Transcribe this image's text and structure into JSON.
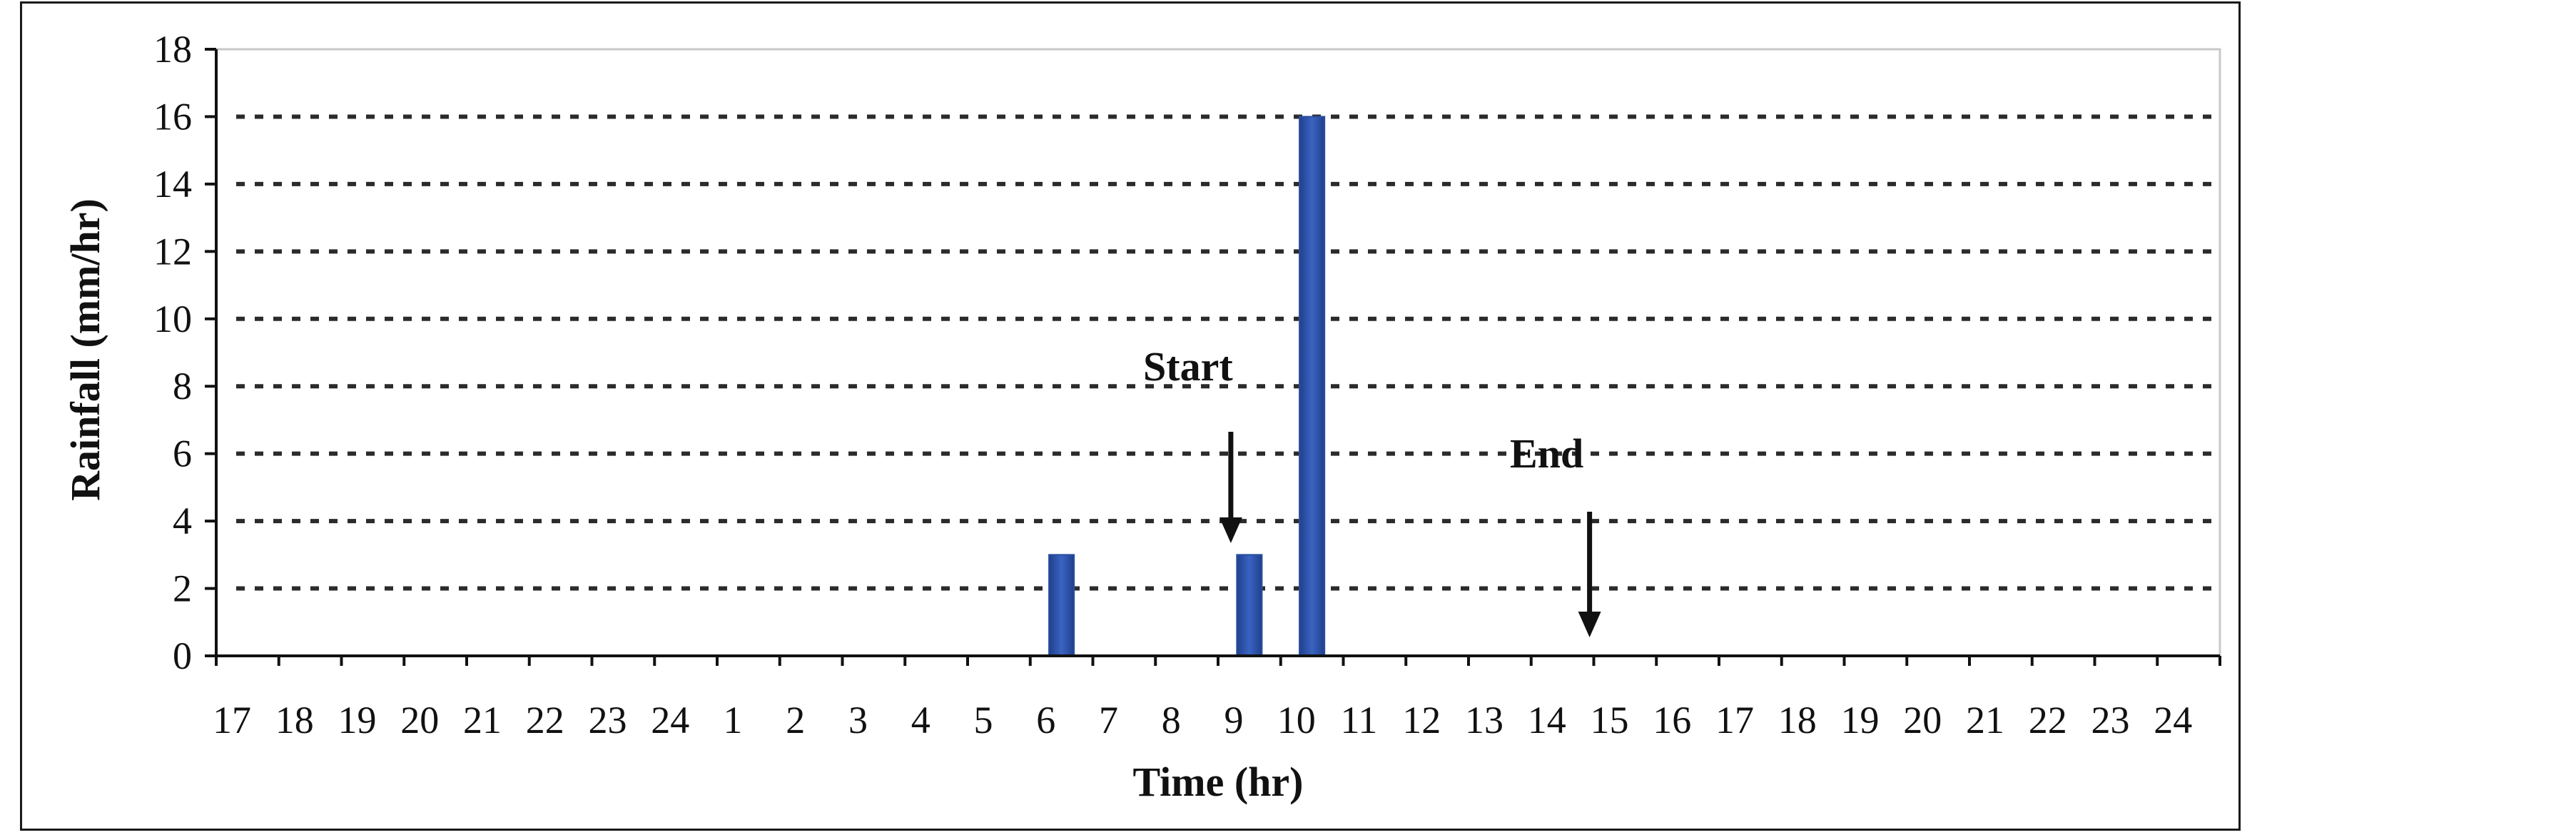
{
  "chart_data": {
    "type": "bar",
    "xlabel": "Time (hr)",
    "ylabel": "Rainfall (mm/hr)",
    "ylim": [
      0,
      18
    ],
    "yticks": [
      0,
      2,
      4,
      6,
      8,
      10,
      12,
      14,
      16,
      18
    ],
    "grid": "dashed horizontal",
    "categories": [
      "17",
      "18",
      "19",
      "20",
      "21",
      "22",
      "23",
      "24",
      "1",
      "2",
      "3",
      "4",
      "5",
      "6",
      "7",
      "8",
      "9",
      "10",
      "11",
      "12",
      "13",
      "14",
      "15",
      "16",
      "17",
      "18",
      "19",
      "20",
      "21",
      "22",
      "23",
      "24"
    ],
    "values": [
      0,
      0,
      0,
      0,
      0,
      0,
      0,
      0,
      0,
      0,
      0,
      0,
      0,
      3,
      0,
      0,
      3,
      16,
      0,
      0,
      0,
      0,
      0,
      0,
      0,
      0,
      0,
      0,
      0,
      0,
      0,
      0
    ],
    "bar_color": "#2a4fa0",
    "annotations": [
      {
        "text": "Start",
        "at_category_index": 16
      },
      {
        "text": "End",
        "at_category_index": 21
      }
    ]
  }
}
